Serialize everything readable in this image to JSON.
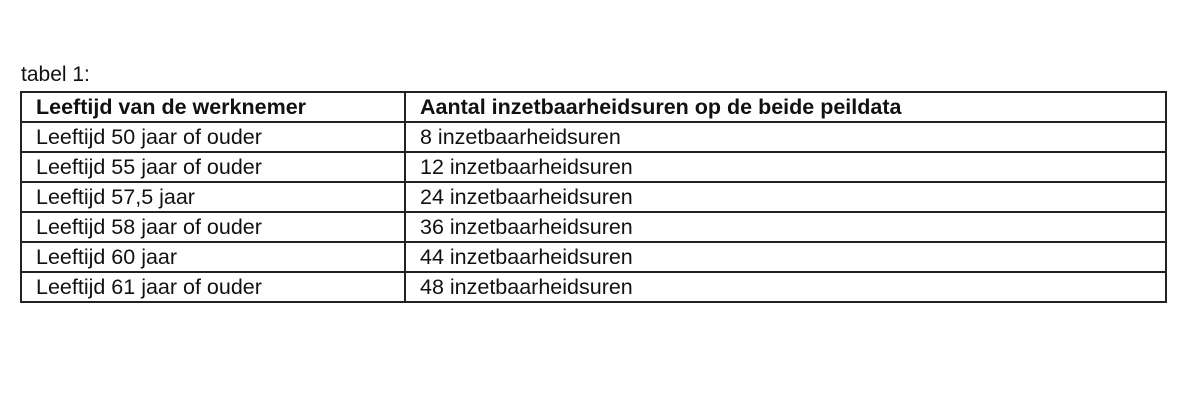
{
  "caption": "tabel 1:",
  "table": {
    "headers": [
      "Leeftijd van de werknemer",
      "Aantal inzetbaarheidsuren op de beide peildata"
    ],
    "rows": [
      [
        "Leeftijd 50 jaar of ouder",
        "8 inzetbaarheidsuren"
      ],
      [
        "Leeftijd 55 jaar of ouder",
        "12 inzetbaarheidsuren"
      ],
      [
        "Leeftijd 57,5 jaar",
        "24 inzetbaarheidsuren"
      ],
      [
        "Leeftijd 58 jaar of ouder",
        "36 inzetbaarheidsuren"
      ],
      [
        "Leeftijd 60 jaar",
        "44 inzetbaarheidsuren"
      ],
      [
        "Leeftijd 61 jaar of ouder",
        "48 inzetbaarheidsuren"
      ]
    ]
  }
}
